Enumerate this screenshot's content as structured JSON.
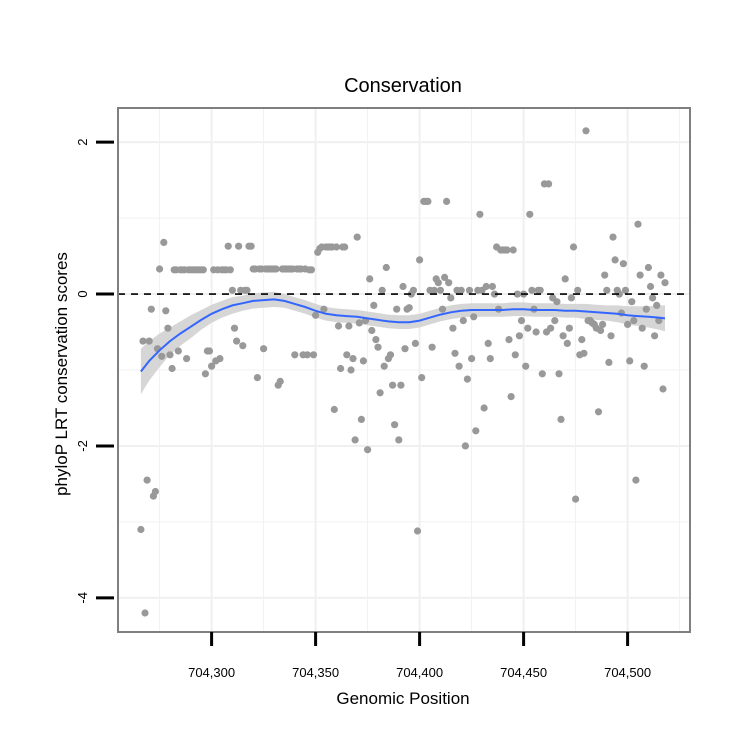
{
  "chart_data": {
    "type": "scatter",
    "title": "Conservation",
    "xlabel": "Genomic Position",
    "ylabel": "phyloP LRT conservation scores",
    "xlim": [
      704255,
      704530
    ],
    "ylim": [
      -4.45,
      2.45
    ],
    "x_ticks": [
      704300,
      704350,
      704400,
      704450,
      704500
    ],
    "x_tick_labels": [
      "704,300",
      "704,350",
      "704,400",
      "704,450",
      "704,500"
    ],
    "y_ticks": [
      -4,
      -2,
      0,
      2
    ],
    "y_tick_labels": [
      "-4",
      "-2",
      "0",
      "2"
    ],
    "grid": true,
    "reference_line": {
      "y": 0,
      "style": "dashed",
      "color": "#000000"
    },
    "colors": {
      "points": "#999999",
      "smooth": "#3366ff",
      "band": "#cfcfcf",
      "panel_border": "#7f7f7f",
      "grid": "#f0f0f0"
    },
    "points": [
      [
        704266,
        -3.1
      ],
      [
        704267,
        -0.62
      ],
      [
        704268,
        -4.2
      ],
      [
        704269,
        -2.45
      ],
      [
        704270,
        -0.62
      ],
      [
        704271,
        -0.2
      ],
      [
        704272,
        -2.66
      ],
      [
        704273,
        -2.6
      ],
      [
        704274,
        -0.72
      ],
      [
        704275,
        0.33
      ],
      [
        704276,
        -0.82
      ],
      [
        704277,
        0.68
      ],
      [
        704278,
        -0.22
      ],
      [
        704279,
        -0.45
      ],
      [
        704280,
        -0.8
      ],
      [
        704281,
        -0.98
      ],
      [
        704282,
        0.32
      ],
      [
        704283,
        0.32
      ],
      [
        704284,
        -0.75
      ],
      [
        704285,
        0.32
      ],
      [
        704286,
        0.32
      ],
      [
        704287,
        0.32
      ],
      [
        704288,
        -0.85
      ],
      [
        704289,
        0.32
      ],
      [
        704290,
        0.32
      ],
      [
        704291,
        0.32
      ],
      [
        704292,
        0.32
      ],
      [
        704293,
        0.32
      ],
      [
        704294,
        0.32
      ],
      [
        704295,
        0.32
      ],
      [
        704296,
        0.32
      ],
      [
        704297,
        -1.05
      ],
      [
        704298,
        -0.75
      ],
      [
        704299,
        -0.75
      ],
      [
        704300,
        -0.95
      ],
      [
        704301,
        0.32
      ],
      [
        704302,
        -0.88
      ],
      [
        704303,
        0.32
      ],
      [
        704304,
        -0.85
      ],
      [
        704305,
        0.32
      ],
      [
        704306,
        0.32
      ],
      [
        704307,
        0.32
      ],
      [
        704308,
        0.63
      ],
      [
        704309,
        0.32
      ],
      [
        704310,
        0.05
      ],
      [
        704311,
        -0.45
      ],
      [
        704312,
        -0.62
      ],
      [
        704313,
        0.63
      ],
      [
        704314,
        0.05
      ],
      [
        704315,
        -0.68
      ],
      [
        704316,
        0.05
      ],
      [
        704317,
        0.05
      ],
      [
        704318,
        0.63
      ],
      [
        704319,
        0.63
      ],
      [
        704320,
        0.33
      ],
      [
        704321,
        0.33
      ],
      [
        704322,
        -1.1
      ],
      [
        704323,
        0.33
      ],
      [
        704324,
        0.33
      ],
      [
        704325,
        -0.72
      ],
      [
        704326,
        0.33
      ],
      [
        704327,
        0.33
      ],
      [
        704328,
        0.33
      ],
      [
        704329,
        0.33
      ],
      [
        704330,
        0.33
      ],
      [
        704331,
        0.33
      ],
      [
        704332,
        -1.2
      ],
      [
        704333,
        -1.15
      ],
      [
        704334,
        0.33
      ],
      [
        704335,
        0.33
      ],
      [
        704336,
        0.33
      ],
      [
        704337,
        0.33
      ],
      [
        704338,
        0.33
      ],
      [
        704339,
        0.33
      ],
      [
        704340,
        -0.8
      ],
      [
        704341,
        0.33
      ],
      [
        704342,
        0.33
      ],
      [
        704343,
        0.33
      ],
      [
        704344,
        -0.8
      ],
      [
        704345,
        0.33
      ],
      [
        704346,
        -0.8
      ],
      [
        704347,
        0.32
      ],
      [
        704348,
        0.32
      ],
      [
        704349,
        -0.8
      ],
      [
        704350,
        -0.28
      ],
      [
        704351,
        0.55
      ],
      [
        704352,
        0.6
      ],
      [
        704353,
        0.62
      ],
      [
        704354,
        -0.2
      ],
      [
        704355,
        0.62
      ],
      [
        704356,
        0.62
      ],
      [
        704357,
        0.62
      ],
      [
        704358,
        0.62
      ],
      [
        704359,
        -1.52
      ],
      [
        704360,
        0.62
      ],
      [
        704361,
        -0.42
      ],
      [
        704362,
        -0.98
      ],
      [
        704363,
        0.62
      ],
      [
        704364,
        0.62
      ],
      [
        704365,
        -0.8
      ],
      [
        704366,
        -0.42
      ],
      [
        704367,
        -1.0
      ],
      [
        704368,
        -0.85
      ],
      [
        704369,
        -1.92
      ],
      [
        704370,
        0.75
      ],
      [
        704371,
        -0.38
      ],
      [
        704372,
        -1.65
      ],
      [
        704373,
        -0.88
      ],
      [
        704374,
        -0.35
      ],
      [
        704375,
        -2.05
      ],
      [
        704376,
        0.2
      ],
      [
        704377,
        -0.48
      ],
      [
        704378,
        -0.15
      ],
      [
        704379,
        -0.6
      ],
      [
        704380,
        -0.7
      ],
      [
        704381,
        -1.3
      ],
      [
        704382,
        0.05
      ],
      [
        704383,
        -0.95
      ],
      [
        704384,
        0.35
      ],
      [
        704385,
        -0.85
      ],
      [
        704386,
        -0.8
      ],
      [
        704387,
        -1.2
      ],
      [
        704388,
        -1.72
      ],
      [
        704389,
        -0.2
      ],
      [
        704390,
        -1.92
      ],
      [
        704391,
        -1.2
      ],
      [
        704392,
        0.1
      ],
      [
        704393,
        -0.72
      ],
      [
        704394,
        -0.2
      ],
      [
        704395,
        -0.18
      ],
      [
        704396,
        0.0
      ],
      [
        704397,
        0.05
      ],
      [
        704398,
        -0.65
      ],
      [
        704399,
        -3.12
      ],
      [
        704400,
        0.45
      ],
      [
        704401,
        -1.1
      ],
      [
        704402,
        1.22
      ],
      [
        704403,
        1.22
      ],
      [
        704404,
        1.22
      ],
      [
        704405,
        0.05
      ],
      [
        704406,
        -0.7
      ],
      [
        704407,
        0.05
      ],
      [
        704408,
        0.2
      ],
      [
        704409,
        0.15
      ],
      [
        704410,
        0.05
      ],
      [
        704411,
        -0.2
      ],
      [
        704412,
        0.22
      ],
      [
        704413,
        1.22
      ],
      [
        704414,
        0.15
      ],
      [
        704415,
        -0.05
      ],
      [
        704416,
        -0.45
      ],
      [
        704417,
        -0.78
      ],
      [
        704418,
        0.05
      ],
      [
        704419,
        -0.95
      ],
      [
        704420,
        0.05
      ],
      [
        704421,
        -0.35
      ],
      [
        704422,
        -2.0
      ],
      [
        704423,
        -1.12
      ],
      [
        704424,
        0.05
      ],
      [
        704425,
        -0.85
      ],
      [
        704426,
        -0.3
      ],
      [
        704427,
        -1.8
      ],
      [
        704428,
        0.05
      ],
      [
        704429,
        1.05
      ],
      [
        704430,
        0.05
      ],
      [
        704431,
        -1.5
      ],
      [
        704432,
        0.1
      ],
      [
        704433,
        -0.65
      ],
      [
        704434,
        -0.85
      ],
      [
        704435,
        0.1
      ],
      [
        704436,
        0.0
      ],
      [
        704437,
        0.62
      ],
      [
        704438,
        -0.2
      ],
      [
        704439,
        0.58
      ],
      [
        704440,
        0.58
      ],
      [
        704441,
        0.58
      ],
      [
        704442,
        0.58
      ],
      [
        704443,
        -0.6
      ],
      [
        704444,
        -1.35
      ],
      [
        704445,
        0.58
      ],
      [
        704446,
        -0.8
      ],
      [
        704447,
        0.0
      ],
      [
        704448,
        -0.55
      ],
      [
        704449,
        -0.35
      ],
      [
        704450,
        0.0
      ],
      [
        704451,
        -0.95
      ],
      [
        704452,
        -0.45
      ],
      [
        704453,
        1.05
      ],
      [
        704454,
        0.05
      ],
      [
        704455,
        -0.2
      ],
      [
        704456,
        -0.5
      ],
      [
        704457,
        0.05
      ],
      [
        704458,
        0.05
      ],
      [
        704459,
        -1.05
      ],
      [
        704460,
        1.45
      ],
      [
        704461,
        -0.5
      ],
      [
        704462,
        1.45
      ],
      [
        704463,
        -0.45
      ],
      [
        704464,
        -0.05
      ],
      [
        704465,
        -0.35
      ],
      [
        704466,
        -0.1
      ],
      [
        704467,
        -1.05
      ],
      [
        704468,
        -1.65
      ],
      [
        704469,
        -0.55
      ],
      [
        704470,
        0.2
      ],
      [
        704471,
        -0.65
      ],
      [
        704472,
        -0.45
      ],
      [
        704473,
        -0.05
      ],
      [
        704474,
        0.62
      ],
      [
        704475,
        -2.7
      ],
      [
        704476,
        0.05
      ],
      [
        704477,
        -0.8
      ],
      [
        704478,
        -0.6
      ],
      [
        704479,
        -0.78
      ],
      [
        704480,
        2.15
      ],
      [
        704481,
        -0.35
      ],
      [
        704482,
        -0.35
      ],
      [
        704483,
        -0.38
      ],
      [
        704484,
        -0.4
      ],
      [
        704485,
        -0.45
      ],
      [
        704486,
        -1.55
      ],
      [
        704487,
        -0.48
      ],
      [
        704488,
        -0.4
      ],
      [
        704489,
        0.25
      ],
      [
        704490,
        0.05
      ],
      [
        704491,
        -0.9
      ],
      [
        704492,
        -0.55
      ],
      [
        704493,
        0.75
      ],
      [
        704494,
        0.45
      ],
      [
        704495,
        0.05
      ],
      [
        704496,
        0.0
      ],
      [
        704497,
        -0.25
      ],
      [
        704498,
        0.4
      ],
      [
        704499,
        0.05
      ],
      [
        704500,
        -0.4
      ],
      [
        704501,
        -0.88
      ],
      [
        704502,
        -0.1
      ],
      [
        704503,
        -0.35
      ],
      [
        704504,
        -2.45
      ],
      [
        704505,
        0.92
      ],
      [
        704506,
        0.25
      ],
      [
        704507,
        -0.45
      ],
      [
        704508,
        -0.95
      ],
      [
        704509,
        -0.2
      ],
      [
        704510,
        0.35
      ],
      [
        704511,
        0.1
      ],
      [
        704512,
        -0.05
      ],
      [
        704513,
        -0.55
      ],
      [
        704514,
        -0.15
      ],
      [
        704515,
        -0.35
      ],
      [
        704516,
        0.25
      ],
      [
        704517,
        -1.25
      ],
      [
        704518,
        0.15
      ]
    ],
    "smooth": {
      "x": [
        704266,
        704270,
        704275,
        704280,
        704285,
        704290,
        704295,
        704300,
        704305,
        704310,
        704315,
        704320,
        704325,
        704330,
        704335,
        704340,
        704345,
        704350,
        704355,
        704360,
        704365,
        704370,
        704375,
        704380,
        704385,
        704390,
        704395,
        704400,
        704405,
        704410,
        704415,
        704420,
        704425,
        704430,
        704435,
        704440,
        704445,
        704450,
        704455,
        704460,
        704465,
        704470,
        704475,
        704480,
        704485,
        704490,
        704495,
        704500,
        704505,
        704510,
        704515,
        704518
      ],
      "y": [
        -1.02,
        -0.88,
        -0.74,
        -0.62,
        -0.52,
        -0.43,
        -0.34,
        -0.26,
        -0.2,
        -0.15,
        -0.12,
        -0.09,
        -0.08,
        -0.07,
        -0.09,
        -0.13,
        -0.17,
        -0.22,
        -0.26,
        -0.28,
        -0.29,
        -0.3,
        -0.32,
        -0.34,
        -0.36,
        -0.37,
        -0.37,
        -0.35,
        -0.31,
        -0.27,
        -0.24,
        -0.22,
        -0.21,
        -0.21,
        -0.21,
        -0.21,
        -0.2,
        -0.2,
        -0.21,
        -0.21,
        -0.21,
        -0.22,
        -0.22,
        -0.23,
        -0.24,
        -0.25,
        -0.26,
        -0.28,
        -0.29,
        -0.3,
        -0.31,
        -0.32
      ],
      "se": [
        0.3,
        0.26,
        0.22,
        0.18,
        0.16,
        0.15,
        0.13,
        0.12,
        0.11,
        0.11,
        0.1,
        0.1,
        0.1,
        0.1,
        0.09,
        0.09,
        0.09,
        0.09,
        0.09,
        0.09,
        0.09,
        0.09,
        0.09,
        0.09,
        0.09,
        0.09,
        0.09,
        0.09,
        0.09,
        0.09,
        0.09,
        0.09,
        0.09,
        0.09,
        0.09,
        0.09,
        0.09,
        0.09,
        0.09,
        0.09,
        0.09,
        0.09,
        0.09,
        0.1,
        0.1,
        0.1,
        0.11,
        0.12,
        0.13,
        0.14,
        0.16,
        0.17
      ]
    }
  }
}
